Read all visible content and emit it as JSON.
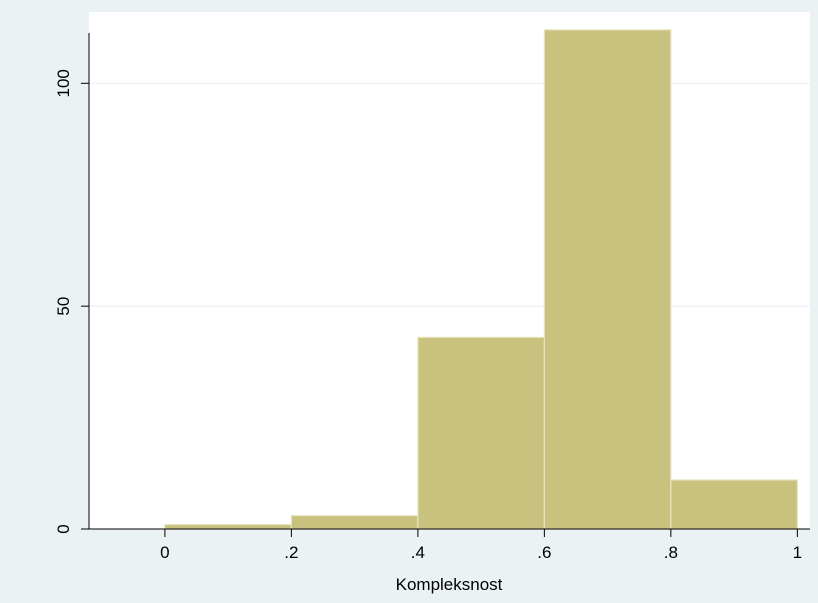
{
  "chart_data": {
    "type": "bar",
    "subtype": "histogram",
    "xlabel": "Kompleksnost",
    "ylabel": "",
    "xlim": [
      -0.12,
      1.02
    ],
    "ylim": [
      0,
      116
    ],
    "x_ticks": [
      {
        "value": 0,
        "label": "0"
      },
      {
        "value": 0.2,
        "label": ".2"
      },
      {
        "value": 0.4,
        "label": ".4"
      },
      {
        "value": 0.6,
        "label": ".6"
      },
      {
        "value": 0.8,
        "label": ".8"
      },
      {
        "value": 1,
        "label": "1"
      }
    ],
    "y_ticks": [
      {
        "value": 0,
        "label": "0"
      },
      {
        "value": 50,
        "label": "50"
      },
      {
        "value": 100,
        "label": "100"
      }
    ],
    "bins": [
      {
        "from": 0.0,
        "to": 0.2,
        "value": 1
      },
      {
        "from": 0.2,
        "to": 0.4,
        "value": 3
      },
      {
        "from": 0.4,
        "to": 0.6,
        "value": 43
      },
      {
        "from": 0.6,
        "to": 0.8,
        "value": 112
      },
      {
        "from": 0.8,
        "to": 1.0,
        "value": 11
      }
    ],
    "grid": "horizontal",
    "legend": "none",
    "colors": {
      "background": "#eaf2f3",
      "plot_background": "#ffffff",
      "bar_fill": "#c9c27f",
      "bar_edge": "#e8e4bf",
      "gridline": "#eaf2f3",
      "axis": "#000000"
    }
  }
}
